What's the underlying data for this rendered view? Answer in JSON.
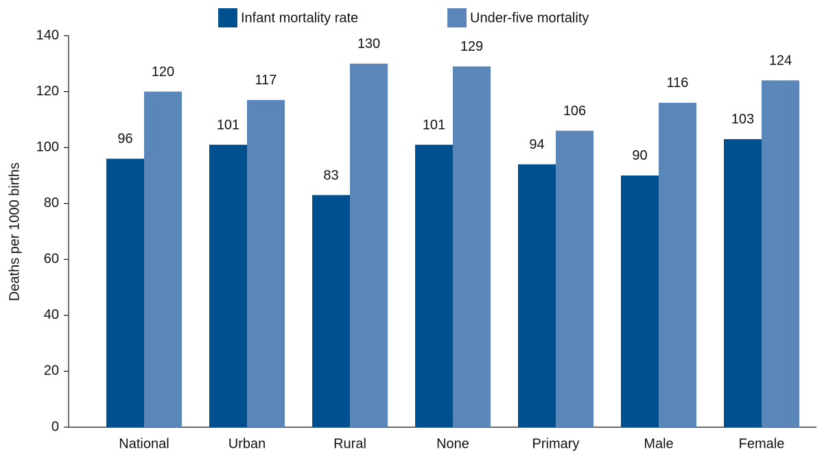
{
  "chart_data": {
    "type": "bar",
    "y_label": "Deaths per 1000 births",
    "categories": [
      "National",
      "Urban",
      "Rural",
      "None",
      "Primary",
      "Male",
      "Female"
    ],
    "series": [
      {
        "name": "Infant mortality rate",
        "color": "#00508f",
        "values": [
          96,
          101,
          83,
          101,
          94,
          90,
          103
        ]
      },
      {
        "name": "Under-five mortality",
        "color": "#5b86ba",
        "values": [
          120,
          117,
          130,
          129,
          106,
          116,
          124
        ]
      }
    ],
    "ylim": [
      0,
      140
    ],
    "yticks": [
      0,
      20,
      40,
      60,
      80,
      100,
      120,
      140
    ],
    "grid": false,
    "legend": "top"
  }
}
